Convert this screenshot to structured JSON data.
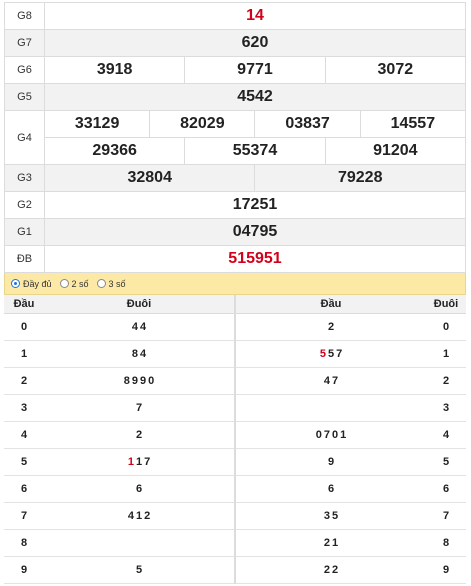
{
  "prizes": [
    {
      "label": "G8",
      "numbers": [
        "14"
      ],
      "red": true
    },
    {
      "label": "G7",
      "numbers": [
        "620"
      ]
    },
    {
      "label": "G6",
      "numbers": [
        "3918",
        "9771",
        "3072"
      ]
    },
    {
      "label": "G5",
      "numbers": [
        "4542"
      ]
    },
    {
      "label": "G4",
      "numbers_row1": [
        "33129",
        "82029",
        "03837",
        "14557"
      ],
      "numbers_row2": [
        "29366",
        "55374",
        "91204"
      ]
    },
    {
      "label": "G3",
      "numbers": [
        "32804",
        "79228"
      ]
    },
    {
      "label": "G2",
      "numbers": [
        "17251"
      ]
    },
    {
      "label": "G1",
      "numbers": [
        "04795"
      ]
    },
    {
      "label": "ĐB",
      "numbers": [
        "515951"
      ],
      "red": true
    }
  ],
  "filter": {
    "options": [
      "Đầy đủ",
      "2 số",
      "3 số"
    ],
    "selected": "Đầy đủ"
  },
  "loto": {
    "headers": {
      "dau": "Đầu",
      "duoi": "Đuôi",
      "dau2": "Đầu",
      "duoi2": "Đuôi"
    },
    "rows": [
      {
        "dau": "0",
        "duoi": [
          {
            "v": "4"
          },
          {
            "v": "4"
          }
        ],
        "dau2": [
          {
            "v": "2"
          }
        ],
        "duoi2": "0"
      },
      {
        "dau": "1",
        "duoi": [
          {
            "v": "8"
          },
          {
            "v": "4"
          }
        ],
        "dau2": [
          {
            "v": "5",
            "hl": true
          },
          {
            "v": "5"
          },
          {
            "v": "7"
          }
        ],
        "duoi2": "1"
      },
      {
        "dau": "2",
        "duoi": [
          {
            "v": "8"
          },
          {
            "v": "9"
          },
          {
            "v": "9"
          },
          {
            "v": "0"
          }
        ],
        "dau2": [
          {
            "v": "4"
          },
          {
            "v": "7"
          }
        ],
        "duoi2": "2"
      },
      {
        "dau": "3",
        "duoi": [
          {
            "v": "7"
          }
        ],
        "dau2": [],
        "duoi2": "3"
      },
      {
        "dau": "4",
        "duoi": [
          {
            "v": "2"
          }
        ],
        "dau2": [
          {
            "v": "0"
          },
          {
            "v": "7"
          },
          {
            "v": "0"
          },
          {
            "v": "1"
          }
        ],
        "duoi2": "4"
      },
      {
        "dau": "5",
        "duoi": [
          {
            "v": "1",
            "hl": true
          },
          {
            "v": "1"
          },
          {
            "v": "7"
          }
        ],
        "dau2": [
          {
            "v": "9"
          }
        ],
        "duoi2": "5"
      },
      {
        "dau": "6",
        "duoi": [
          {
            "v": "6"
          }
        ],
        "dau2": [
          {
            "v": "6"
          }
        ],
        "duoi2": "6"
      },
      {
        "dau": "7",
        "duoi": [
          {
            "v": "4"
          },
          {
            "v": "1"
          },
          {
            "v": "2"
          }
        ],
        "dau2": [
          {
            "v": "3"
          },
          {
            "v": "5"
          }
        ],
        "duoi2": "7"
      },
      {
        "dau": "8",
        "duoi": [],
        "dau2": [
          {
            "v": "2"
          },
          {
            "v": "1"
          }
        ],
        "duoi2": "8"
      },
      {
        "dau": "9",
        "duoi": [
          {
            "v": "5"
          }
        ],
        "dau2": [
          {
            "v": "2"
          },
          {
            "v": "2"
          }
        ],
        "duoi2": "9"
      }
    ]
  },
  "colors": {
    "highlight": "#d0021b",
    "filter_bg": "#fde9a6",
    "radio_selected": "#1a73e8"
  }
}
